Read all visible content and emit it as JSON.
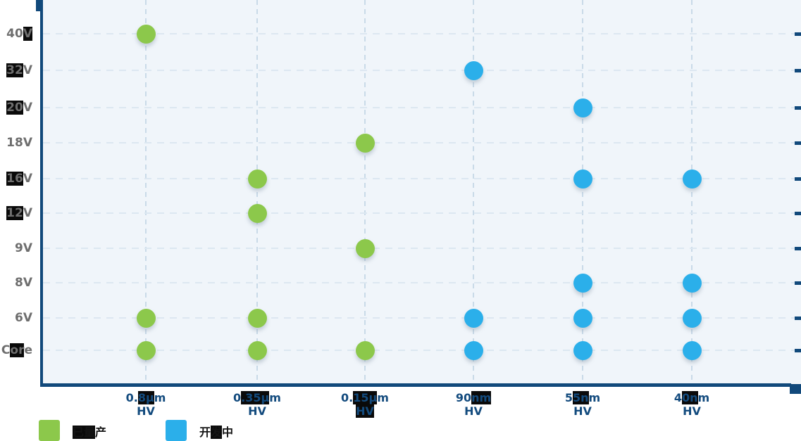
{
  "chart_data": {
    "type": "scatter",
    "title": "",
    "xlabel": "",
    "ylabel": "",
    "grid": true,
    "legend_position": "bottom-left",
    "x_categories": [
      "0.8µm HV",
      "0.35µm HV",
      "0.15µm HV",
      "90nm HV",
      "55nm HV",
      "40nm HV"
    ],
    "y_categories": [
      "40V",
      "32V",
      "20V",
      "18V",
      "16V",
      "12V",
      "9V",
      "8V",
      "6V",
      "Core"
    ],
    "series": [
      {
        "name": "已量产",
        "color": "#8CC84B",
        "points": [
          [
            "0.8µm HV",
            "40V"
          ],
          [
            "0.8µm HV",
            "6V"
          ],
          [
            "0.8µm HV",
            "Core"
          ],
          [
            "0.35µm HV",
            "16V"
          ],
          [
            "0.35µm HV",
            "12V"
          ],
          [
            "0.35µm HV",
            "6V"
          ],
          [
            "0.35µm HV",
            "Core"
          ],
          [
            "0.15µm HV",
            "18V"
          ],
          [
            "0.15µm HV",
            "9V"
          ],
          [
            "0.15µm HV",
            "Core"
          ]
        ]
      },
      {
        "name": "开发中",
        "color": "#2BAFEA",
        "points": [
          [
            "90nm HV",
            "32V"
          ],
          [
            "90nm HV",
            "6V"
          ],
          [
            "90nm HV",
            "Core"
          ],
          [
            "55nm HV",
            "20V"
          ],
          [
            "55nm HV",
            "16V"
          ],
          [
            "55nm HV",
            "8V"
          ],
          [
            "55nm HV",
            "6V"
          ],
          [
            "55nm HV",
            "Core"
          ],
          [
            "40nm HV",
            "16V"
          ],
          [
            "40nm HV",
            "8V"
          ],
          [
            "40nm HV",
            "6V"
          ],
          [
            "40nm HV",
            "Core"
          ]
        ]
      }
    ]
  },
  "axes": {
    "y_label_parts": [
      [
        [
          "40",
          0
        ],
        [
          "V",
          1
        ]
      ],
      [
        [
          "32",
          1
        ],
        [
          "V",
          0
        ]
      ],
      [
        [
          "20",
          1
        ],
        [
          "V",
          0
        ]
      ],
      [
        [
          "18V",
          0
        ]
      ],
      [
        [
          "16",
          1
        ],
        [
          "V",
          0
        ]
      ],
      [
        [
          "12",
          1
        ],
        [
          "V",
          0
        ]
      ],
      [
        [
          "9V",
          0
        ]
      ],
      [
        [
          "8V",
          0
        ]
      ],
      [
        [
          "6V",
          0
        ]
      ],
      [
        [
          "C",
          0
        ],
        [
          "or",
          1
        ],
        [
          "e",
          0
        ]
      ]
    ],
    "x_label_parts": [
      {
        "line1": [
          [
            "0.",
            0
          ],
          [
            "8µ",
            1
          ],
          [
            "m",
            0
          ]
        ],
        "line2": [
          [
            "HV",
            0
          ]
        ]
      },
      {
        "line1": [
          [
            "0",
            0
          ],
          [
            ".35µ",
            1
          ],
          [
            "m",
            0
          ]
        ],
        "line2": [
          [
            "HV",
            0
          ]
        ]
      },
      {
        "line1": [
          [
            "0.",
            0
          ],
          [
            "15µ",
            1
          ],
          [
            "m",
            0
          ]
        ],
        "line2": [
          [
            "HV",
            1
          ]
        ]
      },
      {
        "line1": [
          [
            "90",
            0
          ],
          [
            "nm",
            1
          ]
        ],
        "line2": [
          [
            "HV",
            0
          ]
        ]
      },
      {
        "line1": [
          [
            "5",
            0
          ],
          [
            "5n",
            1
          ],
          [
            "m",
            0
          ]
        ],
        "line2": [
          [
            "HV",
            0
          ]
        ]
      },
      {
        "line1": [
          [
            "4",
            0
          ],
          [
            "0n",
            1
          ],
          [
            "m",
            0
          ]
        ],
        "line2": [
          [
            "HV",
            0
          ]
        ]
      }
    ]
  },
  "legend": {
    "items": [
      {
        "label": "已量产",
        "parts": [
          [
            "已量",
            1
          ],
          [
            "产",
            0
          ]
        ],
        "color": "#8CC84B"
      },
      {
        "label": "开发中",
        "parts": [
          [
            "开",
            0
          ],
          [
            "发",
            1
          ],
          [
            "中",
            0
          ]
        ],
        "color": "#2BAFEA"
      }
    ]
  },
  "colors": {
    "axis": "#11497B",
    "plot_background": "#F0F5FA",
    "y_label": "#6E6E6E",
    "x_label": "#134B7E",
    "produced_green": "#8CC84B",
    "developing_blue": "#2BAFEA"
  }
}
